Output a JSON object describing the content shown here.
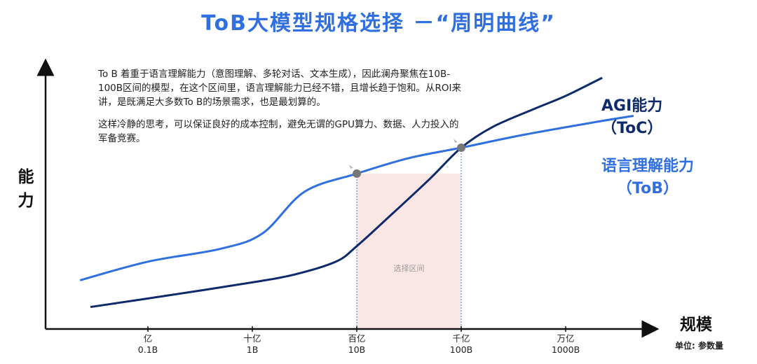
{
  "title": "ToB大模型规格选择 －“周明曲线”",
  "description": {
    "p1": "To B 着重于语言理解能力（意图理解、多轮对话、文本生成），因此澜舟聚焦在10B-100B区间的模型，在这个区间里，语言理解能力已经不错，且增长趋于饱和。从ROI来讲，是既满足大多数To B的场景需求，也是最划算的。",
    "p2": "这样冷静的思考，可以保证良好的成本控制，避免无谓的GPU算力、数据、人力投入的军备竞赛。"
  },
  "colors": {
    "title": "#2f6fe0",
    "tob_line": "#2f6fe0",
    "agi_line": "#0f2a6b",
    "highlight": "#fbe6e6"
  },
  "chart_data": {
    "type": "line",
    "xlabel": "规模",
    "ylabel": "能力",
    "unit_note": "单位: 参数量",
    "x_ticks": [
      {
        "top": "亿",
        "bottom": "0.1B",
        "x": -1
      },
      {
        "top": "十亿",
        "bottom": "1B",
        "x": 0
      },
      {
        "top": "百亿",
        "bottom": "10B",
        "x": 1
      },
      {
        "top": "千亿",
        "bottom": "100B",
        "x": 2
      },
      {
        "top": "万亿",
        "bottom": "1000B",
        "x": 3
      }
    ],
    "x_range": [
      -1.98,
      3.87
    ],
    "y_range": [
      0,
      1
    ],
    "highlight_region": {
      "x_from": 1,
      "x_to": 2,
      "label": "选择区间"
    },
    "series": [
      {
        "name": "语言理解能力（ToB）",
        "label_line1": "语言理解能力",
        "label_line2": "（ToB）",
        "points": [
          [
            -1.65,
            0.188
          ],
          [
            -1.0,
            0.26
          ],
          [
            -0.3,
            0.31
          ],
          [
            0.1,
            0.37
          ],
          [
            0.5,
            0.53
          ],
          [
            1.0,
            0.6
          ],
          [
            1.5,
            0.66
          ],
          [
            2.0,
            0.7
          ],
          [
            2.6,
            0.75
          ],
          [
            3.3,
            0.8
          ],
          [
            3.65,
            0.823
          ]
        ]
      },
      {
        "name": "AGI能力（ToC）",
        "label_line1": "AGI能力",
        "label_line2": "（ToC）",
        "points": [
          [
            -1.55,
            0.085
          ],
          [
            -0.8,
            0.13
          ],
          [
            0.0,
            0.18
          ],
          [
            0.4,
            0.21
          ],
          [
            0.8,
            0.26
          ],
          [
            1.0,
            0.32
          ],
          [
            1.3,
            0.43
          ],
          [
            1.7,
            0.58
          ],
          [
            2.0,
            0.7
          ],
          [
            2.3,
            0.78
          ],
          [
            2.7,
            0.85
          ],
          [
            3.0,
            0.9
          ],
          [
            3.35,
            0.97
          ]
        ]
      }
    ],
    "intersections": [
      {
        "x": 1,
        "y": 0.6
      },
      {
        "x": 2,
        "y": 0.7
      }
    ]
  }
}
